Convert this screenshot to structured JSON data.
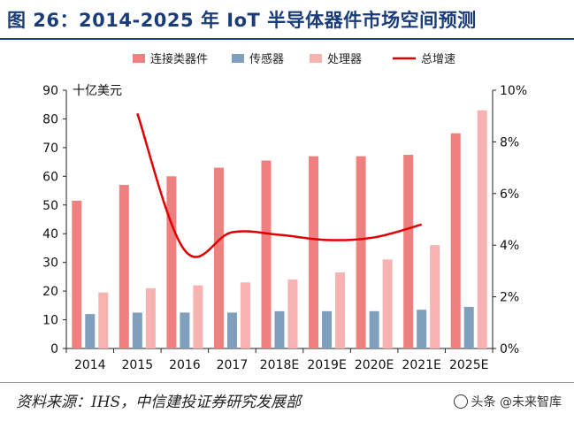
{
  "title": "图 26：2014-2025 年 IoT 半导体器件市场空间预测",
  "source": "资料来源：IHS，中信建投证券研究发展部",
  "watermark": "头条 @未来智库",
  "chart_data": {
    "type": "bar",
    "categories": [
      "2014",
      "2015",
      "2016",
      "2017",
      "2018E",
      "2019E",
      "2020E",
      "2021E",
      "2025E"
    ],
    "ylabel": "十亿美元",
    "ylim": [
      0,
      90
    ],
    "yticks": [
      0,
      10,
      20,
      30,
      40,
      50,
      60,
      70,
      80,
      90
    ],
    "y2lim": [
      0,
      10
    ],
    "y2ticks": [
      "0%",
      "2%",
      "4%",
      "6%",
      "8%",
      "10%"
    ],
    "y2tick_values": [
      0,
      2,
      4,
      6,
      8,
      10
    ],
    "legend_position": "top",
    "series": [
      {
        "name": "连接类器件",
        "color": "#f08080",
        "values": [
          51.5,
          57,
          60,
          63,
          65.5,
          67,
          67,
          67.5,
          75
        ]
      },
      {
        "name": "传感器",
        "color": "#7f9fbd",
        "values": [
          12,
          12.5,
          12.5,
          12.5,
          13,
          13,
          13,
          13.5,
          14.5
        ]
      },
      {
        "name": "处理器",
        "color": "#f7b2b2",
        "values": [
          19.5,
          21,
          22,
          23,
          24,
          26.5,
          31,
          36,
          83
        ]
      }
    ],
    "line": {
      "name": "总增速",
      "color": "#e00000",
      "axis": "right",
      "values": [
        null,
        9.1,
        3.8,
        4.5,
        4.4,
        4.2,
        4.3,
        4.8,
        null
      ]
    }
  }
}
